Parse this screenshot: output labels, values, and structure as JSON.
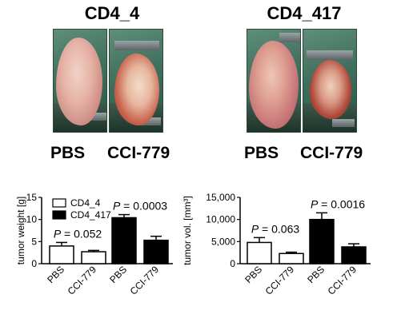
{
  "panels": [
    {
      "title": "CD4_4",
      "labels": [
        "PBS",
        "CCI-779"
      ]
    },
    {
      "title": "CD4_417",
      "labels": [
        "PBS",
        "CCI-779"
      ]
    }
  ],
  "chart_data": [
    {
      "type": "bar",
      "ylabel": "tumor weight [g]",
      "ylim": [
        0,
        15
      ],
      "yticks": [
        "0",
        "5",
        "10",
        "15"
      ],
      "categories": [
        "PBS",
        "CCI-779",
        "PBS",
        "CCI-779"
      ],
      "values": [
        4.0,
        2.7,
        10.4,
        5.3
      ],
      "errors": [
        0.8,
        0.3,
        0.7,
        0.9
      ],
      "fills": [
        "#ffffff",
        "#ffffff",
        "#000000",
        "#000000"
      ],
      "legend": [
        {
          "label": "CD4_4",
          "color": "#ffffff"
        },
        {
          "label": "CD4_417",
          "color": "#000000"
        }
      ],
      "legend_position": "top-left",
      "annotations": [
        {
          "p": "P",
          "text": " = 0.052",
          "over": [
            0,
            1
          ]
        },
        {
          "p": "P",
          "text": " = 0.0003",
          "over": [
            2,
            3
          ]
        }
      ]
    },
    {
      "type": "bar",
      "ylabel": "tumor vol. [mm³]",
      "ylim": [
        0,
        15000
      ],
      "yticks": [
        "0",
        "5,000",
        "10,000",
        "15,000"
      ],
      "categories": [
        "PBS",
        "CCI-779",
        "PBS",
        "CCI-779"
      ],
      "values": [
        4800,
        2300,
        10000,
        3800
      ],
      "errors": [
        1100,
        300,
        1500,
        700
      ],
      "fills": [
        "#ffffff",
        "#ffffff",
        "#000000",
        "#000000"
      ],
      "annotations": [
        {
          "p": "P",
          "text": " = 0.063",
          "over": [
            0,
            1
          ]
        },
        {
          "p": "P",
          "text": " = 0.0016",
          "over": [
            2,
            3
          ]
        }
      ]
    }
  ]
}
